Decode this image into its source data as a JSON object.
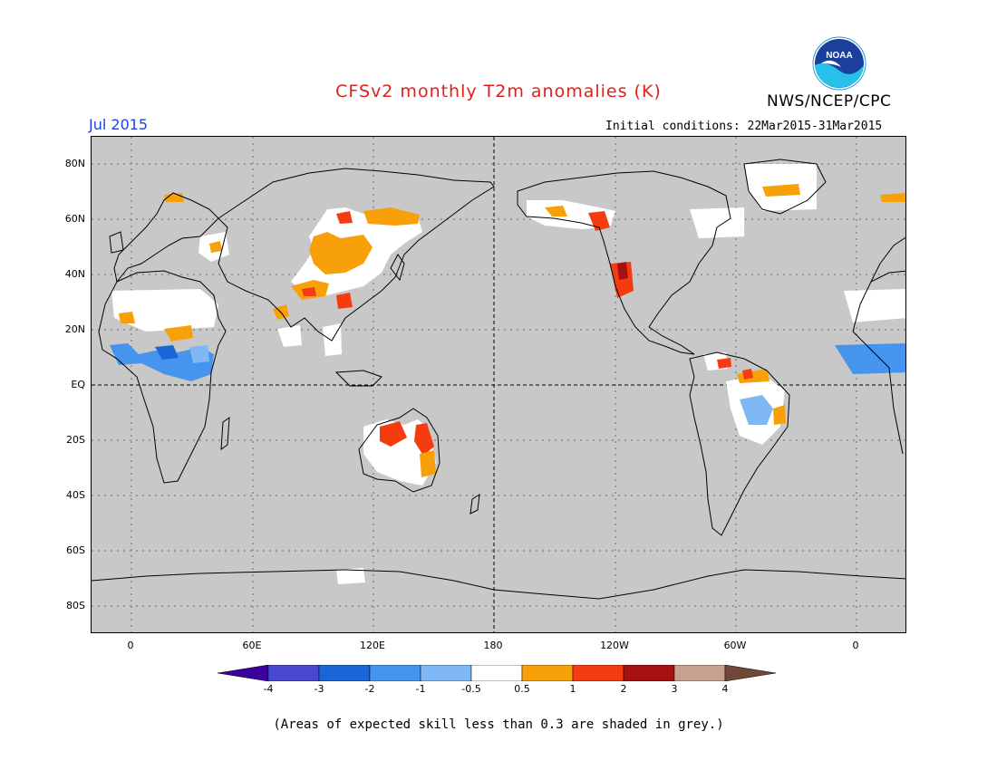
{
  "title": "CFSv2 monthly T2m anomalies (K)",
  "agency": "NWS/NCEP/CPC",
  "valid_date": "Jul 2015",
  "initial_conditions": "Initial conditions: 22Mar2015-31Mar2015",
  "logo_text": "NOAA",
  "footnote": "(Areas of expected skill less than 0.3 are shaded in grey.)",
  "map": {
    "background_color": "#c8c8c8",
    "lat_labels": [
      "80N",
      "60N",
      "40N",
      "20N",
      "EQ",
      "20S",
      "40S",
      "60S",
      "80S"
    ],
    "lon_labels": [
      "0",
      "60E",
      "120E",
      "180",
      "120W",
      "60W",
      "0"
    ],
    "dashed_lines": [
      "equator",
      "dateline"
    ]
  },
  "colorbar": {
    "labels": [
      "-4",
      "-3",
      "-2",
      "-1",
      "-0.5",
      "0.5",
      "1",
      "2",
      "3",
      "4"
    ],
    "colors": [
      "#3a00a0",
      "#4848d0",
      "#1a66d8",
      "#4595ee",
      "#7fb8f4",
      "#ffffff",
      "#f7a00a",
      "#f53c10",
      "#a51010",
      "#c8a090",
      "#704838"
    ]
  },
  "anomaly_regions": [
    {
      "region": "Central Asia / Mongolia",
      "color": "#f7a00a"
    },
    {
      "region": "Northern Australia",
      "color": "#f53c10"
    },
    {
      "region": "Western North America",
      "color": "#f53c10"
    },
    {
      "region": "Alaska",
      "color": "#f53c10"
    },
    {
      "region": "Sahel Africa",
      "color": "#4595ee"
    },
    {
      "region": "Northeast Brazil",
      "color": "#7fb8f4"
    },
    {
      "region": "Northern South America",
      "color": "#f7a00a"
    },
    {
      "region": "Greenland",
      "color": "#f7a00a"
    }
  ]
}
